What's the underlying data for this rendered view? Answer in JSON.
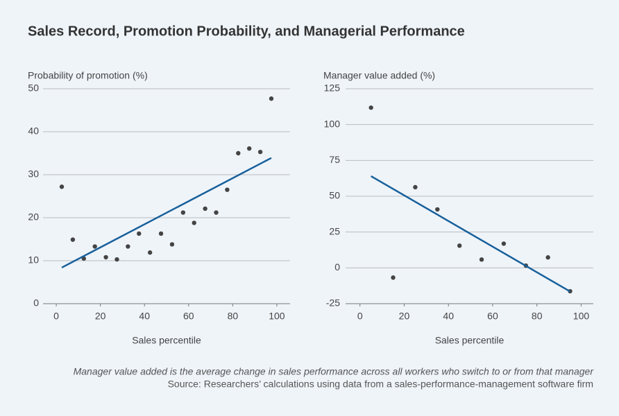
{
  "title": "Sales Record, Promotion Probability, and Managerial Performance",
  "notes": [
    "Manager value added is the average change in sales performance across all workers who switch to or from that manager",
    "Source: Researchers’ calculations using data from a sales-performance-management software firm"
  ],
  "chart_data": [
    {
      "type": "scatter",
      "ylabel": "Probability of promotion (%)",
      "xlabel": "Sales percentile",
      "x": [
        2.5,
        7.5,
        12.5,
        17.5,
        22.5,
        27.5,
        32.5,
        37.5,
        42.5,
        47.5,
        52.5,
        57.5,
        62.5,
        67.5,
        72.5,
        77.5,
        82.5,
        87.5,
        92.5,
        97.5
      ],
      "values": [
        27.2,
        14.9,
        10.5,
        13.3,
        10.8,
        10.3,
        13.3,
        16.3,
        11.9,
        16.3,
        13.8,
        21.2,
        18.8,
        22.1,
        21.2,
        26.5,
        35.0,
        36.1,
        35.3,
        47.7
      ],
      "color": "#444444",
      "trend": {
        "x": [
          2.5,
          97.5
        ],
        "values": [
          8.4,
          33.9
        ],
        "color": "#17609b"
      },
      "xlim": [
        -6,
        106
      ],
      "xticks": [
        0,
        20,
        40,
        60,
        80,
        100
      ],
      "ylim": [
        0,
        50
      ],
      "yticks": [
        0,
        10,
        20,
        30,
        40,
        50
      ],
      "grid": true
    },
    {
      "type": "scatter",
      "ylabel": "Manager value added (%)",
      "xlabel": "Sales percentile",
      "x": [
        5,
        15,
        25,
        35,
        45,
        55,
        65,
        75,
        85,
        95
      ],
      "values": [
        111.8,
        -6.8,
        56.3,
        40.8,
        15.5,
        5.8,
        16.9,
        1.6,
        7.3,
        -16.3
      ],
      "color": "#444444",
      "trend": {
        "x": [
          5,
          95
        ],
        "values": [
          64,
          -16.5
        ],
        "color": "#17609b"
      },
      "xlim": [
        -6.5,
        105.5
      ],
      "xticks": [
        0,
        20,
        40,
        60,
        80,
        100
      ],
      "ylim": [
        -25,
        125
      ],
      "yticks": [
        -25,
        0,
        25,
        50,
        75,
        100,
        125
      ],
      "grid": true
    }
  ]
}
